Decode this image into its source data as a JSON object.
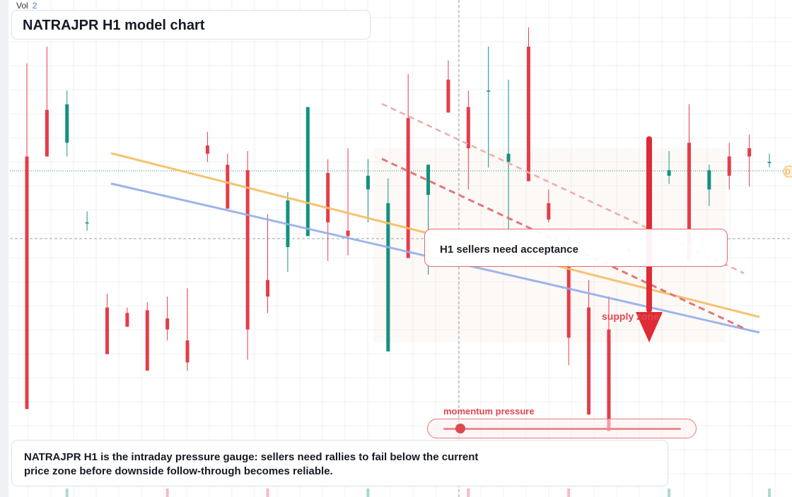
{
  "header": {
    "vol_label": "Vol",
    "vol_value": "2"
  },
  "title": "NATRAJPR H1 model chart",
  "callout": "H1 sellers need acceptance",
  "zone_label": "supply zone",
  "gauge": {
    "label": "momentum pressure",
    "level": 0.07
  },
  "note": "NATRAJPR H1 is the intraday pressure gauge: sellers need rallies to fail below the current price zone before downside follow-through becomes reliable.",
  "price_tag": "D",
  "colors": {
    "up": "#13917f",
    "down": "#e43d4b",
    "orange_line": "#f6bd62",
    "blue_line": "#93aeeb",
    "red_line": "#e47679",
    "arrow": "#de2b35"
  },
  "icons": [
    "down-arrow-icon",
    "gauge-knob-icon"
  ],
  "chart_data": {
    "type": "candlestick",
    "candles": [
      {
        "o": 17.3,
        "h": 20.7,
        "l": 8.1,
        "c": 8.1
      },
      {
        "o": 19.0,
        "h": 21.3,
        "l": 17.3,
        "c": 17.3
      },
      {
        "o": 17.8,
        "h": 19.7,
        "l": 17.3,
        "c": 19.2
      },
      {
        "o": 14.9,
        "h": 15.3,
        "l": 14.6,
        "c": 14.9
      },
      {
        "o": 11.8,
        "h": 12.3,
        "l": 10.1,
        "c": 10.1
      },
      {
        "o": 11.6,
        "h": 11.8,
        "l": 11.1,
        "c": 11.1
      },
      {
        "o": 11.7,
        "h": 12.0,
        "l": 9.5,
        "c": 9.5
      },
      {
        "o": 11.4,
        "h": 12.2,
        "l": 10.6,
        "c": 11.0
      },
      {
        "o": 10.6,
        "h": 12.5,
        "l": 9.5,
        "c": 9.8
      },
      {
        "o": 17.7,
        "h": 18.2,
        "l": 17.1,
        "c": 17.4
      },
      {
        "o": 17.0,
        "h": 17.4,
        "l": 15.4,
        "c": 15.4
      },
      {
        "o": 16.8,
        "h": 17.5,
        "l": 9.9,
        "c": 11.0
      },
      {
        "o": 12.8,
        "h": 15.2,
        "l": 11.6,
        "c": 12.2
      },
      {
        "o": 14.0,
        "h": 16.0,
        "l": 13.1,
        "c": 15.7
      },
      {
        "o": 14.4,
        "h": 19.1,
        "l": 14.4,
        "c": 19.1
      },
      {
        "o": 16.7,
        "h": 17.2,
        "l": 13.5,
        "c": 14.9
      },
      {
        "o": 14.6,
        "h": 17.6,
        "l": 13.7,
        "c": 14.4
      },
      {
        "o": 16.1,
        "h": 17.2,
        "l": 14.9,
        "c": 16.6
      },
      {
        "o": 10.2,
        "h": 16.5,
        "l": 10.2,
        "c": 15.6
      },
      {
        "o": 18.7,
        "h": 20.3,
        "l": 13.6,
        "c": 13.6
      },
      {
        "o": 15.9,
        "h": 17.0,
        "l": 13.0,
        "c": 17.0
      },
      {
        "o": 20.1,
        "h": 20.8,
        "l": 18.9,
        "c": 18.9
      },
      {
        "o": 19.1,
        "h": 19.7,
        "l": 16.1,
        "c": 17.6
      },
      {
        "o": 19.7,
        "h": 21.3,
        "l": 16.9,
        "c": 19.7
      },
      {
        "o": 17.1,
        "h": 20.1,
        "l": 13.6,
        "c": 17.4
      },
      {
        "o": 21.3,
        "h": 22.0,
        "l": 16.4,
        "c": 16.4
      },
      {
        "o": 15.6,
        "h": 16.1,
        "l": 14.9,
        "c": 15.0
      },
      {
        "o": 13.4,
        "h": 14.4,
        "l": 9.7,
        "c": 10.7
      },
      {
        "o": 11.8,
        "h": 12.8,
        "l": 7.9,
        "c": 7.9
      },
      {
        "o": 11.0,
        "h": 12.2,
        "l": 7.3,
        "c": 7.3
      },
      {
        "o": 13.9,
        "h": 14.0,
        "l": 13.8,
        "c": 13.9
      },
      {
        "o": 15.8,
        "h": 17.0,
        "l": 14.3,
        "c": 14.3
      },
      {
        "o": 16.6,
        "h": 17.5,
        "l": 16.3,
        "c": 16.8
      },
      {
        "o": 17.8,
        "h": 19.2,
        "l": 13.5,
        "c": 13.5
      },
      {
        "o": 16.1,
        "h": 17.0,
        "l": 15.5,
        "c": 16.8
      },
      {
        "o": 17.3,
        "h": 17.8,
        "l": 16.1,
        "c": 16.6
      },
      {
        "o": 17.6,
        "h": 18.1,
        "l": 16.2,
        "c": 17.3
      },
      {
        "o": 17.1,
        "h": 17.4,
        "l": 16.9,
        "c": 17.1
      }
    ],
    "guides": [],
    "xlabel": "",
    "ylabel": "",
    "grid": true
  }
}
